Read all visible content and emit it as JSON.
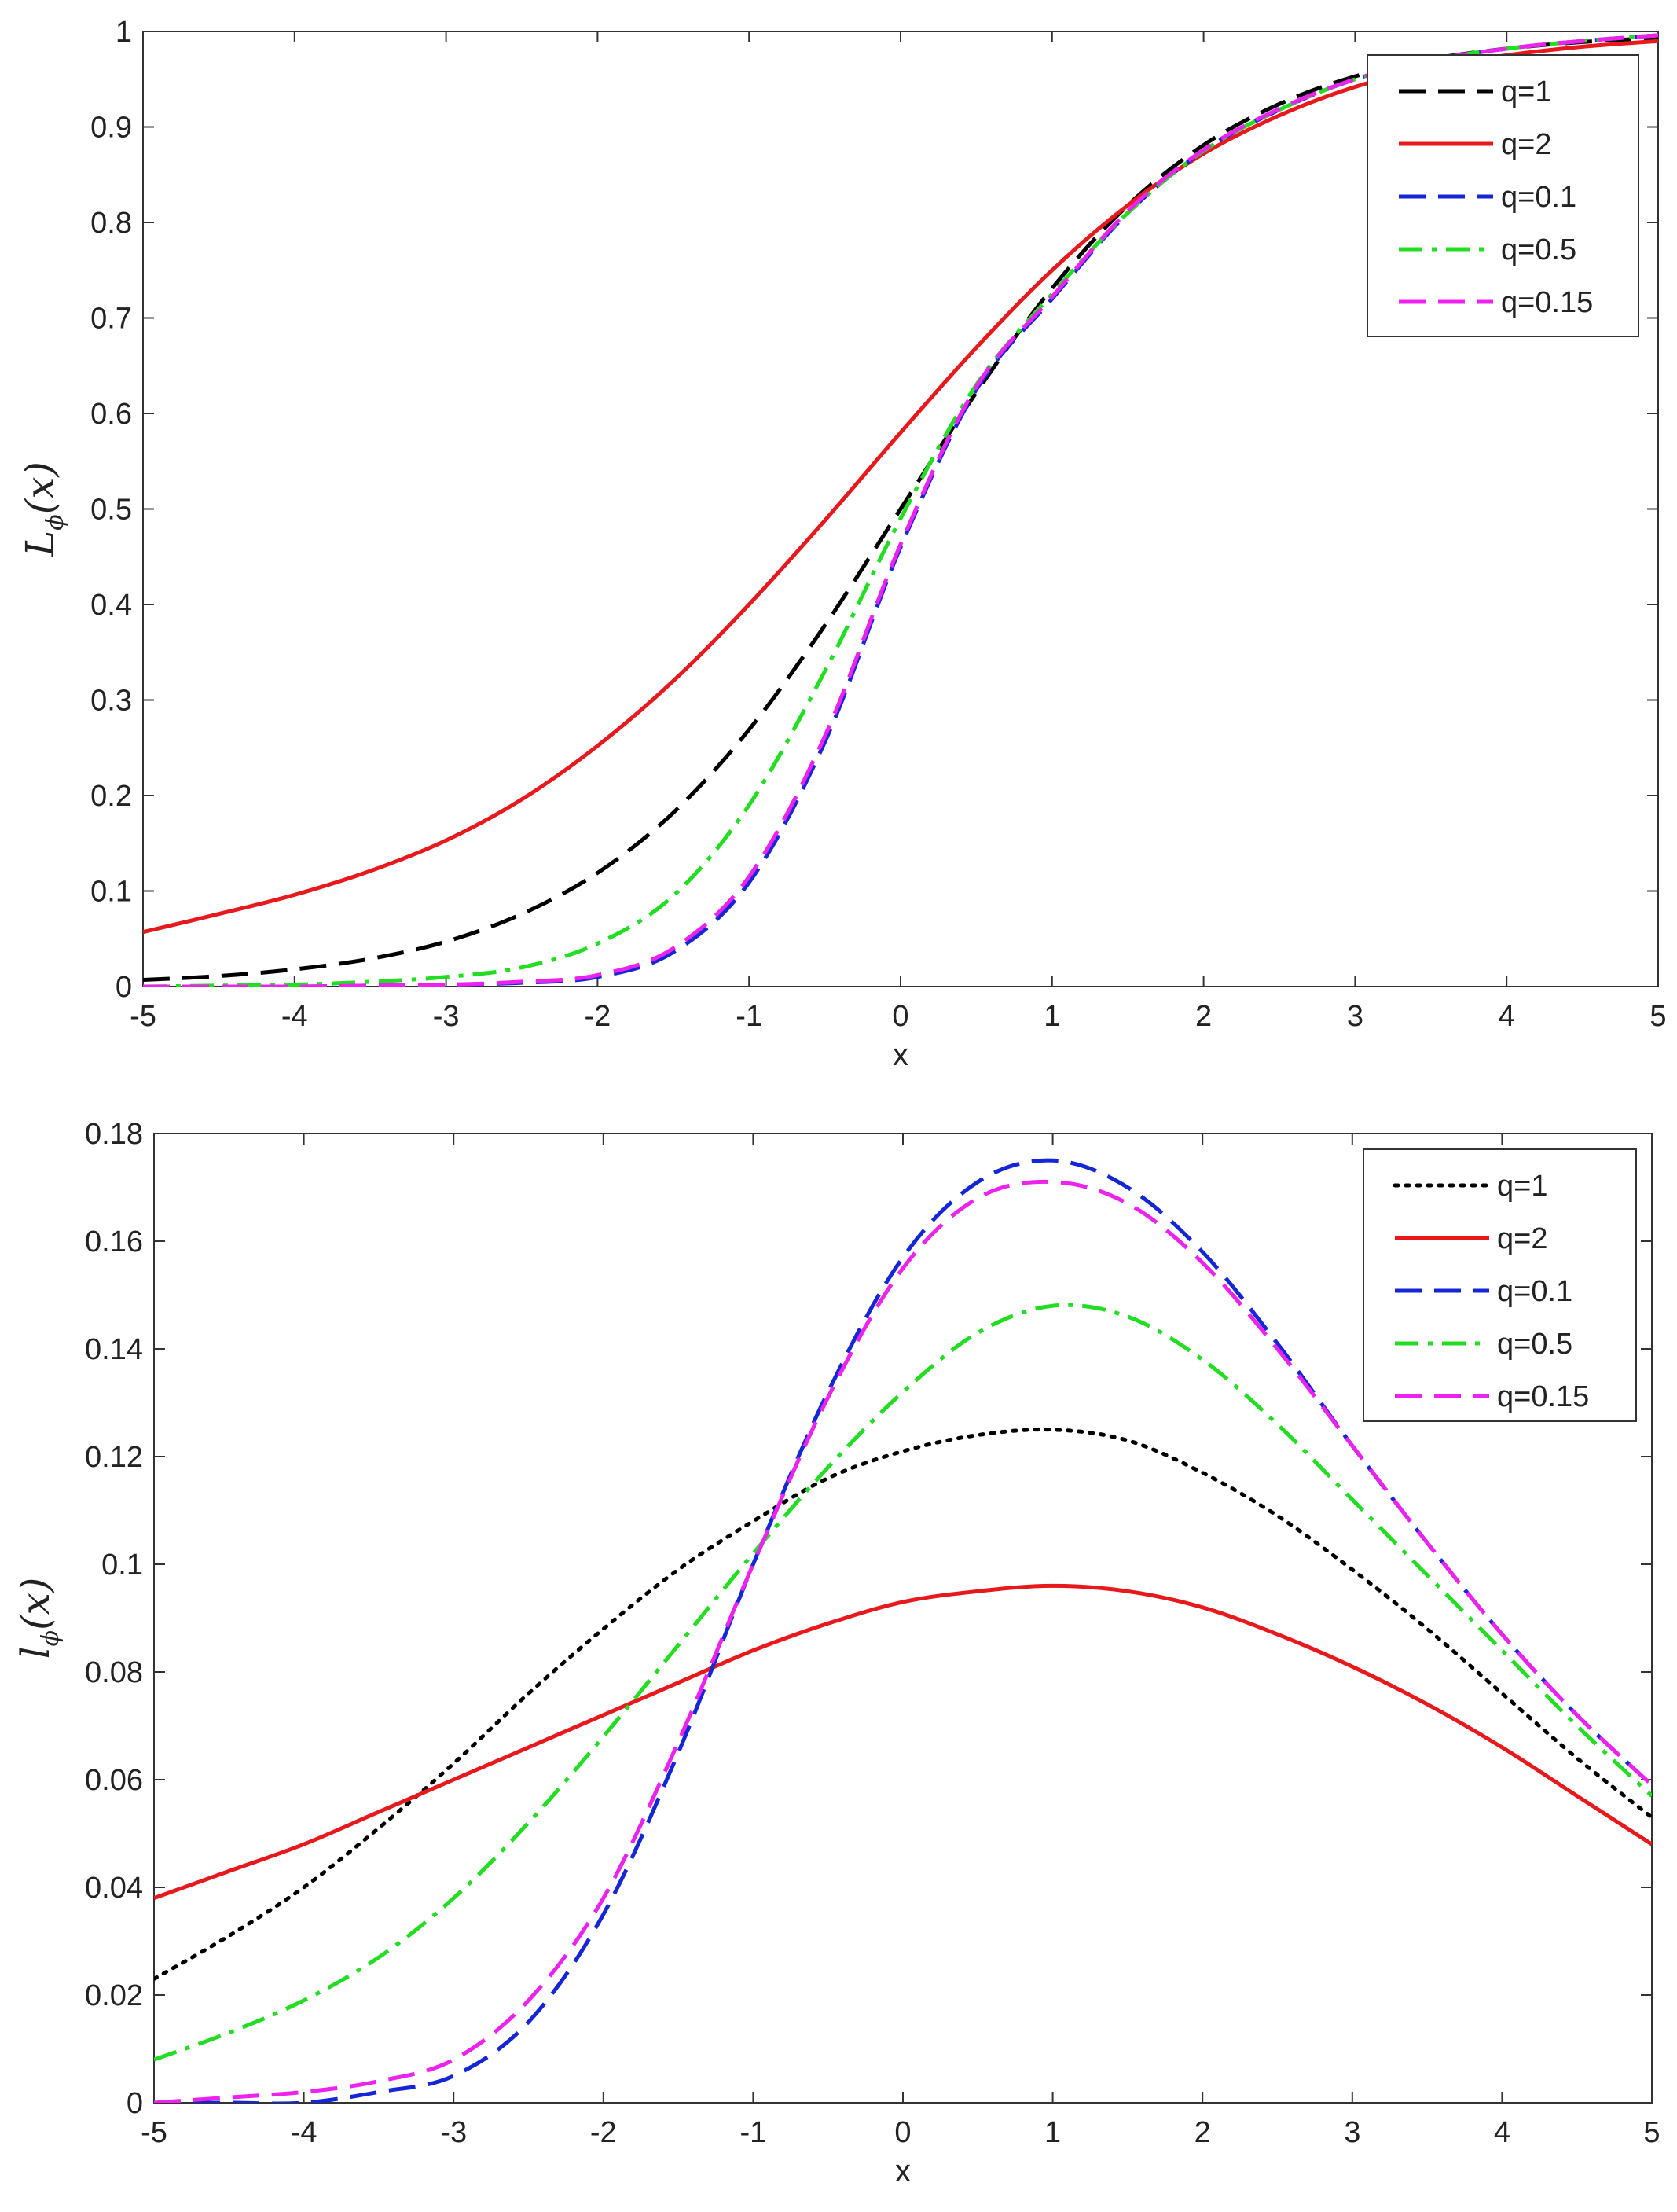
{
  "chart_data": [
    {
      "type": "line",
      "title": "",
      "xlabel": "x",
      "ylabel": {
        "main": "L",
        "sub": "ϕ",
        "arg": "(x)"
      },
      "xlim": [
        -5,
        5
      ],
      "ylim": [
        0,
        1
      ],
      "xticks": [
        "-5",
        "-4",
        "-3",
        "-2",
        "-1",
        "0",
        "1",
        "2",
        "3",
        "4",
        "5"
      ],
      "yticks": [
        "0",
        "0.1",
        "0.2",
        "0.3",
        "0.4",
        "0.5",
        "0.6",
        "0.7",
        "0.8",
        "0.9",
        "1"
      ],
      "legend_position": "top-right",
      "grid": false,
      "x": [
        -5,
        -4.5,
        -4,
        -3.5,
        -3,
        -2.5,
        -2,
        -1.5,
        -1,
        -0.5,
        0,
        0.5,
        1,
        1.5,
        2,
        2.5,
        3,
        3.5,
        4,
        4.5,
        5
      ],
      "series": [
        {
          "name": "q=1",
          "color": "#000000",
          "style": "dashed",
          "values": [
            0.007,
            0.011,
            0.018,
            0.029,
            0.047,
            0.076,
            0.119,
            0.182,
            0.269,
            0.378,
            0.5,
            0.622,
            0.731,
            0.818,
            0.881,
            0.924,
            0.953,
            0.971,
            0.982,
            0.989,
            0.993
          ]
        },
        {
          "name": "q=2",
          "color": "#e8191c",
          "style": "solid",
          "values": [
            0.057,
            0.076,
            0.096,
            0.121,
            0.153,
            0.196,
            0.252,
            0.32,
            0.4,
            0.488,
            0.58,
            0.669,
            0.75,
            0.818,
            0.872,
            0.912,
            0.942,
            0.962,
            0.975,
            0.984,
            0.99
          ]
        },
        {
          "name": "q=0.1",
          "color": "#1426d6",
          "style": "dashed",
          "values": [
            0.0,
            0.0,
            0.0,
            0.001,
            0.002,
            0.004,
            0.01,
            0.036,
            0.109,
            0.256,
            0.46,
            0.625,
            0.72,
            0.81,
            0.875,
            0.918,
            0.95,
            0.97,
            0.982,
            0.99,
            0.996
          ]
        },
        {
          "name": "q=0.5",
          "color": "#22dd22",
          "style": "dashdot",
          "values": [
            0.0,
            0.001,
            0.002,
            0.005,
            0.01,
            0.02,
            0.045,
            0.095,
            0.19,
            0.33,
            0.49,
            0.63,
            0.725,
            0.81,
            0.875,
            0.918,
            0.95,
            0.97,
            0.982,
            0.99,
            0.996
          ]
        },
        {
          "name": "q=0.15",
          "color": "#ee22ee",
          "style": "dashed",
          "values": [
            0.0,
            0.0,
            0.0,
            0.001,
            0.002,
            0.005,
            0.012,
            0.04,
            0.115,
            0.262,
            0.463,
            0.628,
            0.722,
            0.812,
            0.876,
            0.919,
            0.95,
            0.97,
            0.982,
            0.99,
            0.996
          ]
        }
      ]
    },
    {
      "type": "line",
      "title": "",
      "xlabel": "x",
      "ylabel": {
        "main": "l",
        "sub": "ϕ",
        "arg": "(x)"
      },
      "xlim": [
        -5,
        5
      ],
      "ylim": [
        0,
        0.18
      ],
      "xticks": [
        "-5",
        "-4",
        "-3",
        "-2",
        "-1",
        "0",
        "1",
        "2",
        "3",
        "4",
        "5"
      ],
      "yticks": [
        "0",
        "0.02",
        "0.04",
        "0.06",
        "0.08",
        "0.1",
        "0.12",
        "0.14",
        "0.16",
        "0.18"
      ],
      "legend_position": "top-right",
      "grid": false,
      "x": [
        -5,
        -4.5,
        -4,
        -3.5,
        -3,
        -2.5,
        -2,
        -1.5,
        -1,
        -0.5,
        0,
        0.5,
        1,
        1.5,
        2,
        2.5,
        3,
        3.5,
        4,
        4.5,
        5
      ],
      "series": [
        {
          "name": "q=1",
          "color": "#000000",
          "style": "dotted",
          "values": [
            0.023,
            0.031,
            0.04,
            0.051,
            0.063,
            0.076,
            0.088,
            0.099,
            0.108,
            0.116,
            0.121,
            0.124,
            0.125,
            0.123,
            0.117,
            0.109,
            0.099,
            0.088,
            0.076,
            0.064,
            0.053
          ]
        },
        {
          "name": "q=2",
          "color": "#e8191c",
          "style": "solid",
          "values": [
            0.038,
            0.043,
            0.048,
            0.054,
            0.06,
            0.066,
            0.072,
            0.078,
            0.084,
            0.089,
            0.093,
            0.095,
            0.096,
            0.095,
            0.092,
            0.087,
            0.081,
            0.074,
            0.066,
            0.057,
            0.048
          ]
        },
        {
          "name": "q=0.1",
          "color": "#1426d6",
          "style": "dashed",
          "values": [
            0.0,
            0.0,
            0.0,
            0.002,
            0.005,
            0.015,
            0.035,
            0.065,
            0.1,
            0.132,
            0.157,
            0.171,
            0.175,
            0.17,
            0.158,
            0.141,
            0.122,
            0.104,
            0.087,
            0.072,
            0.059
          ]
        },
        {
          "name": "q=0.5",
          "color": "#22dd22",
          "style": "dashdot",
          "values": [
            0.008,
            0.013,
            0.019,
            0.027,
            0.038,
            0.052,
            0.068,
            0.085,
            0.102,
            0.118,
            0.132,
            0.143,
            0.148,
            0.146,
            0.138,
            0.126,
            0.112,
            0.098,
            0.084,
            0.07,
            0.057
          ]
        },
        {
          "name": "q=0.15",
          "color": "#ee22ee",
          "style": "dashed",
          "values": [
            0.0,
            0.001,
            0.002,
            0.004,
            0.008,
            0.019,
            0.038,
            0.067,
            0.1,
            0.131,
            0.155,
            0.168,
            0.171,
            0.167,
            0.156,
            0.14,
            0.122,
            0.104,
            0.087,
            0.072,
            0.059
          ]
        }
      ]
    }
  ]
}
